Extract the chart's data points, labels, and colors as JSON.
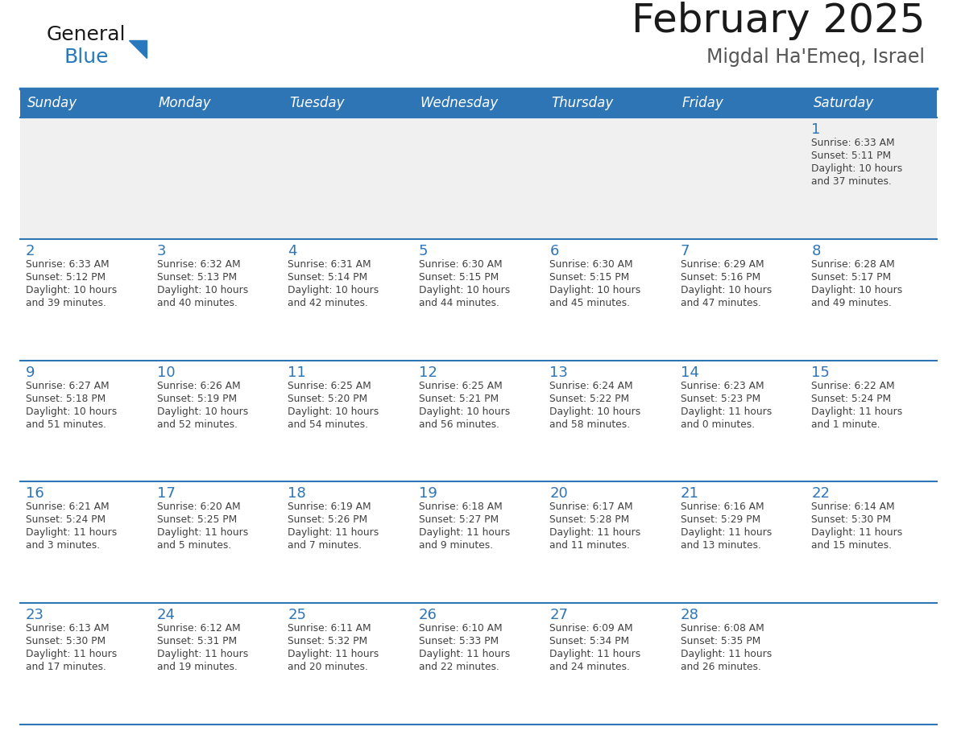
{
  "title": "February 2025",
  "subtitle": "Migdal Ha'Emeq, Israel",
  "days_of_week": [
    "Sunday",
    "Monday",
    "Tuesday",
    "Wednesday",
    "Thursday",
    "Friday",
    "Saturday"
  ],
  "header_bg_color": "#2E75B6",
  "header_text_color": "#FFFFFF",
  "cell_bg_white": "#FFFFFF",
  "cell_bg_gray": "#F0F0F0",
  "day_number_color": "#2E75B6",
  "info_text_color": "#404040",
  "grid_line_color": "#2E75B6",
  "title_color": "#1A1A1A",
  "subtitle_color": "#555555",
  "logo_general_color": "#1A1A1A",
  "logo_blue_color": "#2878BE",
  "calendar_data": [
    [
      {
        "day": null,
        "sunrise": null,
        "sunset": null,
        "daylight": null
      },
      {
        "day": null,
        "sunrise": null,
        "sunset": null,
        "daylight": null
      },
      {
        "day": null,
        "sunrise": null,
        "sunset": null,
        "daylight": null
      },
      {
        "day": null,
        "sunrise": null,
        "sunset": null,
        "daylight": null
      },
      {
        "day": null,
        "sunrise": null,
        "sunset": null,
        "daylight": null
      },
      {
        "day": null,
        "sunrise": null,
        "sunset": null,
        "daylight": null
      },
      {
        "day": 1,
        "sunrise": "6:33 AM",
        "sunset": "5:11 PM",
        "daylight": "10 hours\nand 37 minutes."
      }
    ],
    [
      {
        "day": 2,
        "sunrise": "6:33 AM",
        "sunset": "5:12 PM",
        "daylight": "10 hours\nand 39 minutes."
      },
      {
        "day": 3,
        "sunrise": "6:32 AM",
        "sunset": "5:13 PM",
        "daylight": "10 hours\nand 40 minutes."
      },
      {
        "day": 4,
        "sunrise": "6:31 AM",
        "sunset": "5:14 PM",
        "daylight": "10 hours\nand 42 minutes."
      },
      {
        "day": 5,
        "sunrise": "6:30 AM",
        "sunset": "5:15 PM",
        "daylight": "10 hours\nand 44 minutes."
      },
      {
        "day": 6,
        "sunrise": "6:30 AM",
        "sunset": "5:15 PM",
        "daylight": "10 hours\nand 45 minutes."
      },
      {
        "day": 7,
        "sunrise": "6:29 AM",
        "sunset": "5:16 PM",
        "daylight": "10 hours\nand 47 minutes."
      },
      {
        "day": 8,
        "sunrise": "6:28 AM",
        "sunset": "5:17 PM",
        "daylight": "10 hours\nand 49 minutes."
      }
    ],
    [
      {
        "day": 9,
        "sunrise": "6:27 AM",
        "sunset": "5:18 PM",
        "daylight": "10 hours\nand 51 minutes."
      },
      {
        "day": 10,
        "sunrise": "6:26 AM",
        "sunset": "5:19 PM",
        "daylight": "10 hours\nand 52 minutes."
      },
      {
        "day": 11,
        "sunrise": "6:25 AM",
        "sunset": "5:20 PM",
        "daylight": "10 hours\nand 54 minutes."
      },
      {
        "day": 12,
        "sunrise": "6:25 AM",
        "sunset": "5:21 PM",
        "daylight": "10 hours\nand 56 minutes."
      },
      {
        "day": 13,
        "sunrise": "6:24 AM",
        "sunset": "5:22 PM",
        "daylight": "10 hours\nand 58 minutes."
      },
      {
        "day": 14,
        "sunrise": "6:23 AM",
        "sunset": "5:23 PM",
        "daylight": "11 hours\nand 0 minutes."
      },
      {
        "day": 15,
        "sunrise": "6:22 AM",
        "sunset": "5:24 PM",
        "daylight": "11 hours\nand 1 minute."
      }
    ],
    [
      {
        "day": 16,
        "sunrise": "6:21 AM",
        "sunset": "5:24 PM",
        "daylight": "11 hours\nand 3 minutes."
      },
      {
        "day": 17,
        "sunrise": "6:20 AM",
        "sunset": "5:25 PM",
        "daylight": "11 hours\nand 5 minutes."
      },
      {
        "day": 18,
        "sunrise": "6:19 AM",
        "sunset": "5:26 PM",
        "daylight": "11 hours\nand 7 minutes."
      },
      {
        "day": 19,
        "sunrise": "6:18 AM",
        "sunset": "5:27 PM",
        "daylight": "11 hours\nand 9 minutes."
      },
      {
        "day": 20,
        "sunrise": "6:17 AM",
        "sunset": "5:28 PM",
        "daylight": "11 hours\nand 11 minutes."
      },
      {
        "day": 21,
        "sunrise": "6:16 AM",
        "sunset": "5:29 PM",
        "daylight": "11 hours\nand 13 minutes."
      },
      {
        "day": 22,
        "sunrise": "6:14 AM",
        "sunset": "5:30 PM",
        "daylight": "11 hours\nand 15 minutes."
      }
    ],
    [
      {
        "day": 23,
        "sunrise": "6:13 AM",
        "sunset": "5:30 PM",
        "daylight": "11 hours\nand 17 minutes."
      },
      {
        "day": 24,
        "sunrise": "6:12 AM",
        "sunset": "5:31 PM",
        "daylight": "11 hours\nand 19 minutes."
      },
      {
        "day": 25,
        "sunrise": "6:11 AM",
        "sunset": "5:32 PM",
        "daylight": "11 hours\nand 20 minutes."
      },
      {
        "day": 26,
        "sunrise": "6:10 AM",
        "sunset": "5:33 PM",
        "daylight": "11 hours\nand 22 minutes."
      },
      {
        "day": 27,
        "sunrise": "6:09 AM",
        "sunset": "5:34 PM",
        "daylight": "11 hours\nand 24 minutes."
      },
      {
        "day": 28,
        "sunrise": "6:08 AM",
        "sunset": "5:35 PM",
        "daylight": "11 hours\nand 26 minutes."
      },
      {
        "day": null,
        "sunrise": null,
        "sunset": null,
        "daylight": null
      }
    ]
  ]
}
